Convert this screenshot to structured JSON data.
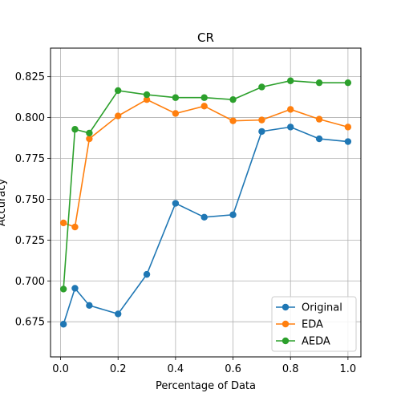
{
  "chart_data": {
    "type": "line",
    "title": "CR",
    "xlabel": "Percentage of Data",
    "ylabel": "Accuracy",
    "xlim": [
      -0.035,
      1.045
    ],
    "ylim": [
      0.6535,
      0.8425
    ],
    "xticks": [
      0.0,
      0.2,
      0.4,
      0.6,
      0.8,
      1.0
    ],
    "xtick_labels": [
      "0.0",
      "0.2",
      "0.4",
      "0.6",
      "0.8",
      "1.0"
    ],
    "yticks": [
      0.675,
      0.7,
      0.725,
      0.75,
      0.775,
      0.8,
      0.825
    ],
    "ytick_labels": [
      "0.675",
      "0.700",
      "0.725",
      "0.750",
      "0.775",
      "0.800",
      "0.825"
    ],
    "grid": true,
    "legend_position": "lower-right",
    "x": [
      0.01,
      0.05,
      0.1,
      0.2,
      0.3,
      0.4,
      0.5,
      0.6,
      0.7,
      0.8,
      0.9,
      1.0
    ],
    "series": [
      {
        "name": "Original",
        "color": "#1f77b4",
        "values": [
          0.6735,
          0.6955,
          0.685,
          0.6798,
          0.704,
          0.7475,
          0.739,
          0.7405,
          0.7915,
          0.7942,
          0.787,
          0.7853
        ]
      },
      {
        "name": "EDA",
        "color": "#ff7f0e",
        "values": [
          0.7355,
          0.733,
          0.787,
          0.801,
          0.811,
          0.8025,
          0.807,
          0.798,
          0.7985,
          0.805,
          0.799,
          0.7942
        ]
      },
      {
        "name": "AEDA",
        "color": "#2ca02c",
        "values": [
          0.695,
          0.7928,
          0.7905,
          0.8165,
          0.814,
          0.8122,
          0.8122,
          0.811,
          0.8187,
          0.8225,
          0.8213,
          0.8213
        ]
      }
    ]
  }
}
